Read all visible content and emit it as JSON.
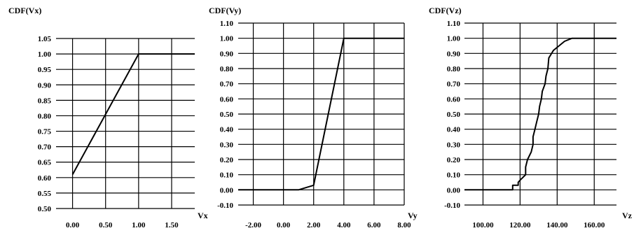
{
  "chart_data": [
    {
      "type": "line",
      "title": "CDF(Vx)",
      "xlabel": "Vx",
      "ylabel": "",
      "xlim": [
        -0.25,
        1.85
      ],
      "ylim": [
        0.5,
        1.05
      ],
      "xticks": [
        0.0,
        0.5,
        1.0,
        1.5
      ],
      "xtick_labels": [
        "0.00",
        "0.50",
        "1.00",
        "1.50"
      ],
      "yticks": [
        0.5,
        0.55,
        0.6,
        0.65,
        0.7,
        0.75,
        0.8,
        0.85,
        0.9,
        0.95,
        1.0,
        1.05
      ],
      "ytick_labels": [
        "0.50",
        "0.55",
        "0.60",
        "0.65",
        "0.70",
        "0.75",
        "0.80",
        "0.85",
        "0.90",
        "0.95",
        "1.00",
        "1.05"
      ],
      "grid": "horizontal and vertical",
      "series": [
        {
          "x": [
            0.0,
            1.0,
            1.85
          ],
          "y": [
            0.61,
            1.0,
            1.0
          ]
        }
      ]
    },
    {
      "type": "line",
      "title": "CDF(Vy)",
      "xlabel": "Vy",
      "ylabel": "",
      "xlim": [
        -3.0,
        8.0
      ],
      "ylim": [
        -0.1,
        1.1
      ],
      "xticks": [
        -2,
        0,
        2,
        4,
        6,
        8
      ],
      "xtick_labels": [
        "-2.00",
        "0.00",
        "2.00",
        "4.00",
        "6.00",
        "8.00"
      ],
      "yticks": [
        -0.1,
        0.0,
        0.1,
        0.2,
        0.3,
        0.4,
        0.5,
        0.6,
        0.7,
        0.8,
        0.9,
        1.0,
        1.1
      ],
      "ytick_labels": [
        "-0.10",
        "0.00",
        "0.10",
        "0.20",
        "0.30",
        "0.40",
        "0.50",
        "0.60",
        "0.70",
        "0.80",
        "0.90",
        "1.00",
        "1.10"
      ],
      "grid": "horizontal and vertical",
      "series": [
        {
          "x": [
            -3.0,
            1.0,
            2.0,
            4.0,
            8.0
          ],
          "y": [
            0.0,
            0.0,
            0.03,
            1.0,
            1.0
          ]
        }
      ]
    },
    {
      "type": "line",
      "title": "CDF(Vz)",
      "xlabel": "Vz",
      "ylabel": "",
      "xlim": [
        90,
        172
      ],
      "ylim": [
        -0.1,
        1.1
      ],
      "xticks": [
        100,
        120,
        140,
        160
      ],
      "xtick_labels": [
        "100.00",
        "120.00",
        "140.00",
        "160.00"
      ],
      "yticks": [
        -0.1,
        0.0,
        0.1,
        0.2,
        0.3,
        0.4,
        0.5,
        0.6,
        0.7,
        0.8,
        0.9,
        1.0,
        1.1
      ],
      "ytick_labels": [
        "-0.10",
        "0.00",
        "0.10",
        "0.20",
        "0.30",
        "0.40",
        "0.50",
        "0.60",
        "0.70",
        "0.80",
        "0.90",
        "1.00",
        "1.10"
      ],
      "grid": "horizontal and vertical",
      "series": [
        {
          "x": [
            90,
            116,
            116,
            119,
            119,
            120.5,
            123,
            123,
            124,
            126,
            127,
            127,
            128,
            129,
            130,
            130.5,
            131.5,
            132,
            133.5,
            134,
            135,
            135.5,
            138,
            141,
            144,
            148,
            172
          ],
          "y": [
            0.0,
            0.0,
            0.03,
            0.03,
            0.05,
            0.07,
            0.1,
            0.15,
            0.2,
            0.25,
            0.3,
            0.35,
            0.4,
            0.45,
            0.5,
            0.55,
            0.6,
            0.65,
            0.7,
            0.75,
            0.8,
            0.87,
            0.92,
            0.95,
            0.98,
            1.0,
            1.0
          ]
        }
      ]
    }
  ]
}
